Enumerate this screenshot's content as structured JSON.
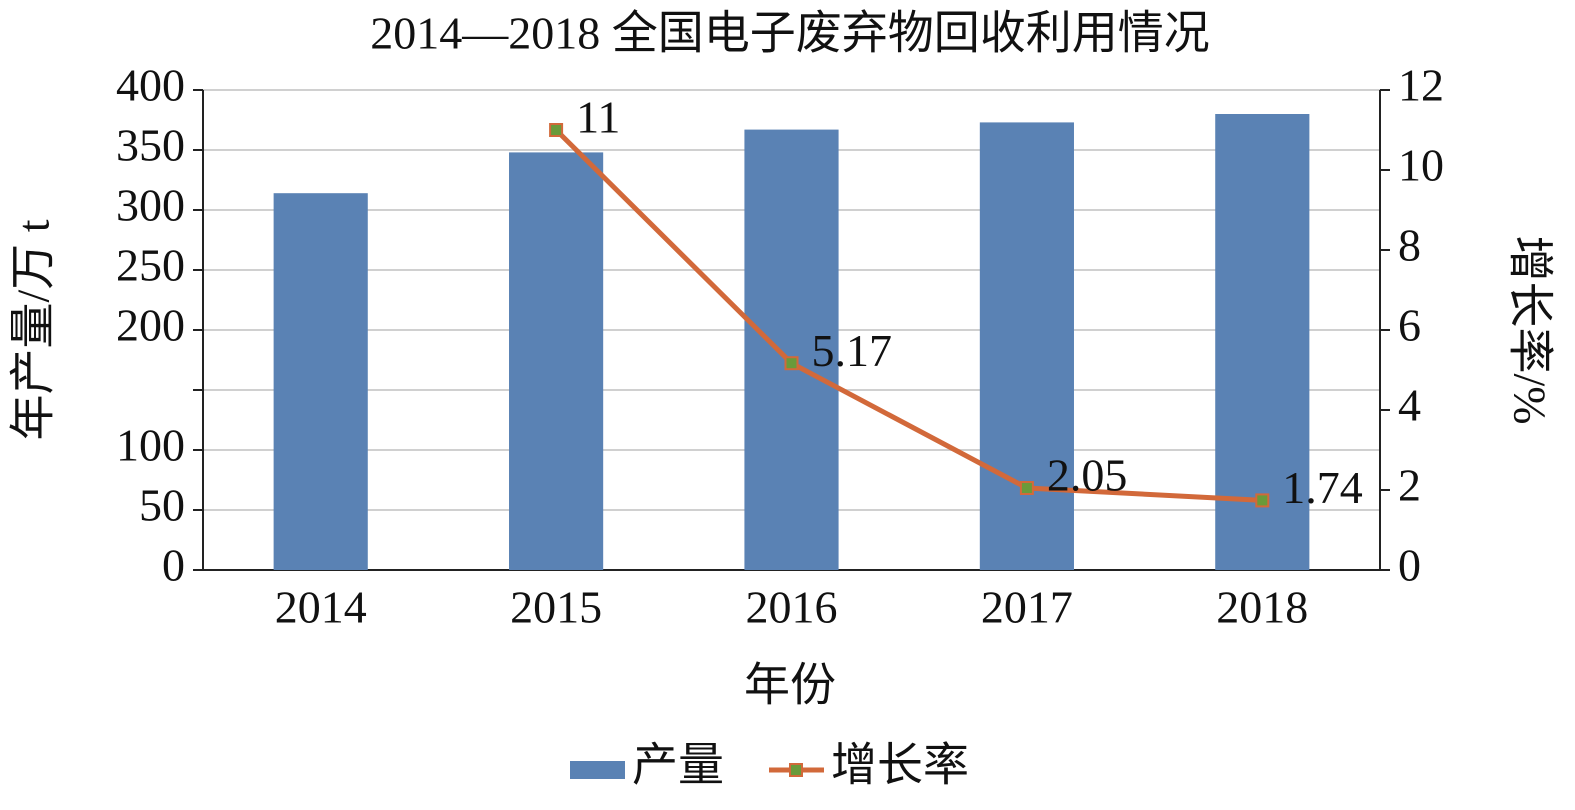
{
  "chart_data": {
    "type": "bar-line",
    "title": "2014—2018 全国电子废弃物回收利用情况",
    "x_label": "年份",
    "y_label": "年产量/万 t",
    "y2_label": "增长率/%",
    "categories": [
      "2014",
      "2015",
      "2016",
      "2017",
      "2018"
    ],
    "series": [
      {
        "name": "产量",
        "type": "bar",
        "color": "#5a82b4",
        "values": [
          314,
          348,
          367,
          373,
          380
        ]
      },
      {
        "name": "增长率",
        "type": "line",
        "axis": "y2",
        "color": "#d2693a",
        "marker_color": "#6a9a3a",
        "values": [
          null,
          11,
          5.17,
          2.05,
          1.74
        ]
      }
    ],
    "ylim": [
      0,
      400
    ],
    "yticks": [
      0,
      50,
      100,
      {
        "value": 150,
        "label": null
      },
      200,
      250,
      300,
      350,
      400
    ],
    "y2lim": [
      0,
      12
    ],
    "y2ticks": [
      0,
      2,
      4,
      6,
      8,
      10,
      12
    ],
    "grid": true,
    "legend": "bottom"
  }
}
